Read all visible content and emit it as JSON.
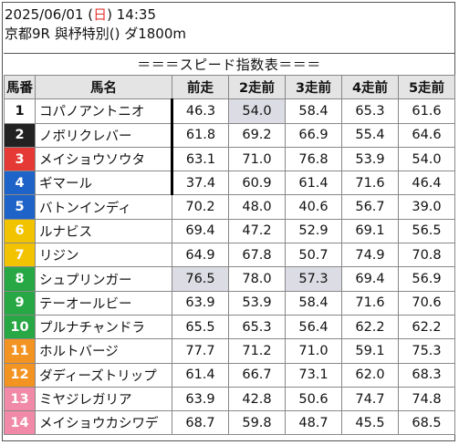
{
  "race_info": {
    "date": "2025/06/01",
    "weekday_open": "(",
    "weekday": "日",
    "weekday_close": ")",
    "time": "14:35",
    "race": "京都9R 與杼特別() ダ1800m"
  },
  "table_title": "＝＝＝スピード指数表＝＝＝",
  "headers": [
    "馬番",
    "馬名",
    "前走",
    "2走前",
    "3走前",
    "4走前",
    "5走前"
  ],
  "colors": {
    "frame1": "#ffffff",
    "frame2": "#222222",
    "frame3": "#e53935",
    "frame4": "#1e63c8",
    "frame5": "#f2c300",
    "frame6": "#28a745",
    "frame7": "#f39322",
    "frame8": "#f08aa8",
    "highlight": "#dcdce4"
  },
  "horses": [
    {
      "no": "1",
      "name": "コパノアントニオ",
      "frame": 1,
      "vals": [
        "46.3",
        "54.0",
        "58.4",
        "65.3",
        "61.6"
      ]
    },
    {
      "no": "2",
      "name": "ノボリクレバー",
      "frame": 2,
      "vals": [
        "61.8",
        "69.2",
        "66.9",
        "55.4",
        "64.6"
      ]
    },
    {
      "no": "3",
      "name": "メイショウソウタ",
      "frame": 3,
      "vals": [
        "63.1",
        "71.0",
        "76.8",
        "53.9",
        "54.0"
      ]
    },
    {
      "no": "4",
      "name": "ギマール",
      "frame": 4,
      "vals": [
        "37.4",
        "60.9",
        "61.4",
        "71.6",
        "46.4"
      ]
    },
    {
      "no": "5",
      "name": "バトンインディ",
      "frame": 4,
      "vals": [
        "70.2",
        "48.0",
        "40.6",
        "56.7",
        "39.0"
      ]
    },
    {
      "no": "6",
      "name": "ルナビス",
      "frame": 5,
      "vals": [
        "69.4",
        "47.2",
        "52.9",
        "69.1",
        "56.5"
      ]
    },
    {
      "no": "7",
      "name": "リジン",
      "frame": 5,
      "vals": [
        "64.9",
        "67.8",
        "50.7",
        "74.9",
        "70.8"
      ]
    },
    {
      "no": "8",
      "name": "シュプリンガー",
      "frame": 6,
      "vals": [
        "76.5",
        "78.0",
        "57.3",
        "69.4",
        "56.9"
      ]
    },
    {
      "no": "9",
      "name": "テーオールビー",
      "frame": 6,
      "vals": [
        "63.9",
        "53.9",
        "58.4",
        "71.6",
        "70.6"
      ]
    },
    {
      "no": "10",
      "name": "プルナチャンドラ",
      "frame": 6,
      "vals": [
        "65.5",
        "65.3",
        "56.4",
        "62.2",
        "62.2"
      ]
    },
    {
      "no": "11",
      "name": "ホルトバージ",
      "frame": 7,
      "vals": [
        "77.7",
        "71.2",
        "71.0",
        "59.1",
        "75.3"
      ]
    },
    {
      "no": "12",
      "name": "ダディーズトリップ",
      "frame": 7,
      "vals": [
        "61.4",
        "66.7",
        "73.1",
        "62.0",
        "68.3"
      ]
    },
    {
      "no": "13",
      "name": "ミヤジレガリア",
      "frame": 8,
      "vals": [
        "63.9",
        "42.8",
        "50.6",
        "74.7",
        "74.8"
      ]
    },
    {
      "no": "14",
      "name": "メイショウカシワデ",
      "frame": 8,
      "vals": [
        "68.7",
        "59.8",
        "48.7",
        "45.5",
        "68.5"
      ]
    }
  ],
  "highlighted_cells": [
    {
      "row": 0,
      "col": 1
    },
    {
      "row": 7,
      "col": 0
    },
    {
      "row": 7,
      "col": 2
    }
  ],
  "bar_rows": [
    0,
    1,
    2,
    3
  ]
}
